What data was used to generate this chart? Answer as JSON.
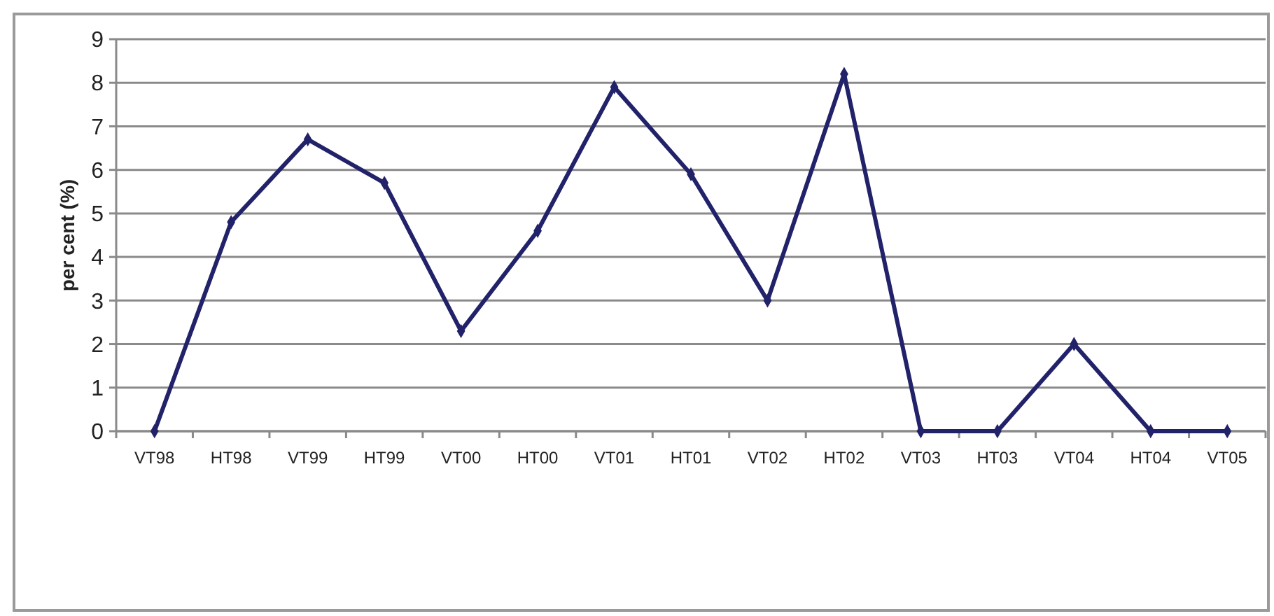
{
  "chart_data": {
    "type": "line",
    "ylabel": "per cent (%)",
    "categories": [
      "VT98",
      "HT98",
      "VT99",
      "HT99",
      "VT00",
      "HT00",
      "VT01",
      "HT01",
      "VT02",
      "HT02",
      "VT03",
      "HT03",
      "VT04",
      "HT04",
      "VT05"
    ],
    "series": [
      {
        "color": "#22226a",
        "values": [
          0,
          4.8,
          6.7,
          5.7,
          2.3,
          4.6,
          7.9,
          5.9,
          3.0,
          8.2,
          0,
          0,
          2.0,
          0,
          0
        ]
      }
    ],
    "ylim": [
      0,
      9
    ],
    "yticks": [
      0,
      1,
      2,
      3,
      4,
      5,
      6,
      7,
      8,
      9
    ],
    "grid": "y",
    "marker": "diamond",
    "line_style": "solid"
  }
}
